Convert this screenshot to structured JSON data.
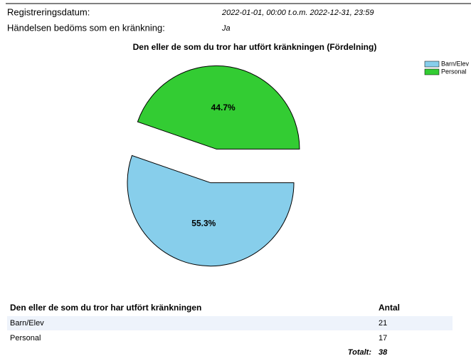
{
  "header": {
    "fields": [
      {
        "label": "Registreringsdatum:",
        "value": "2022-01-01, 00:00 t.o.m. 2022-12-31, 23:59"
      },
      {
        "label": "Händelsen bedöms som en kränkning:",
        "value": "Ja"
      }
    ]
  },
  "chart_data": {
    "type": "pie",
    "title": "Den eller de som du tror har utfört kränkningen (Fördelning)",
    "categories": [
      "Barn/Elev",
      "Personal"
    ],
    "values": [
      55.3,
      44.7
    ],
    "value_labels": [
      "55.3%",
      "44.7%"
    ],
    "colors": [
      "#87ceeb",
      "#33cc33"
    ],
    "legend": "top-right"
  },
  "table": {
    "columns": [
      "Den eller de som du tror har utfört kränkningen",
      "Antal"
    ],
    "rows": [
      [
        "Barn/Elev",
        "21"
      ],
      [
        "Personal",
        "17"
      ]
    ],
    "total_label": "Totalt:",
    "total": "38"
  }
}
